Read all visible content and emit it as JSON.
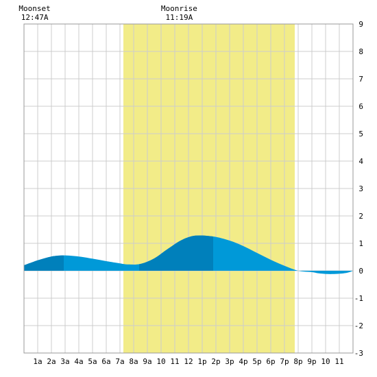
{
  "chart_data": {
    "type": "area",
    "title": "",
    "xlabel": "",
    "ylabel": "",
    "xlim": [
      0,
      24
    ],
    "ylim": [
      -3,
      9
    ],
    "grid": true,
    "x_tick_labels": [
      "1a",
      "2a",
      "3a",
      "4a",
      "5a",
      "6a",
      "7a",
      "8a",
      "9a",
      "10",
      "11",
      "12",
      "1p",
      "2p",
      "3p",
      "4p",
      "5p",
      "6p",
      "7p",
      "8p",
      "9p",
      "10",
      "11"
    ],
    "y_ticks": [
      9,
      8,
      7,
      6,
      5,
      4,
      3,
      2,
      1,
      0,
      -1,
      -2,
      -3
    ],
    "daylight": {
      "start": 7.25,
      "end": 19.75,
      "color": "#f2ec88"
    },
    "series": [
      {
        "x": [
          0,
          1,
          2,
          2.9,
          4,
          5,
          6,
          7,
          7.6,
          8.5,
          9.5,
          10.5,
          11.5,
          12.5,
          13.8,
          15,
          16,
          17,
          18,
          19,
          20,
          21,
          21.6,
          22.5,
          23.5,
          24
        ],
        "values": [
          0.2,
          0.38,
          0.52,
          0.56,
          0.52,
          0.44,
          0.35,
          0.27,
          0.23,
          0.25,
          0.45,
          0.8,
          1.12,
          1.28,
          1.25,
          1.1,
          0.9,
          0.65,
          0.4,
          0.18,
          0.0,
          -0.05,
          -0.1,
          -0.12,
          -0.08,
          0.0
        ]
      }
    ],
    "colors": {
      "tide_dark": "#0080bb",
      "tide_light": "#0099d8",
      "grid": "#cccccc"
    },
    "tide_shading_bands": [
      [
        0,
        2.9
      ],
      [
        8.4,
        13.8
      ]
    ],
    "annotations": [
      {
        "title": "Moonset",
        "time": "12:47A",
        "x": 0.78
      },
      {
        "title": "Moonrise",
        "time": "11:19A",
        "x": 11.32
      }
    ]
  }
}
